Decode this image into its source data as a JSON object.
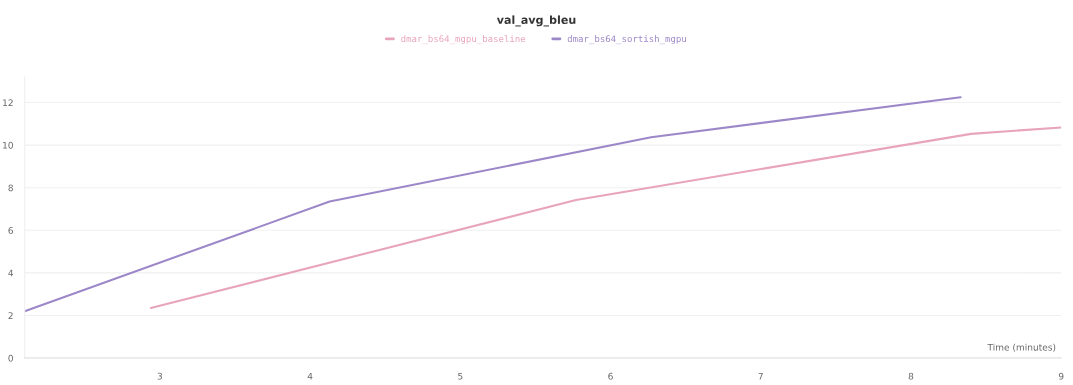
{
  "chart_data": {
    "type": "line",
    "title": "val_avg_bleu",
    "xlabel": "Time (minutes)",
    "xlim": [
      2.1,
      9
    ],
    "xticks": [
      3,
      4,
      5,
      6,
      7,
      8,
      9
    ],
    "ylim": [
      0,
      13.2
    ],
    "yticks": [
      0,
      2,
      4,
      6,
      8,
      10,
      12
    ],
    "grid": "y",
    "legend": "top",
    "series": [
      {
        "name": "dmar_bs64_mgpu_baseline",
        "color": "#e8a5ba",
        "x": [
          2.94,
          5.77,
          8.4,
          9.0
        ],
        "values": [
          2.35,
          7.42,
          10.53,
          10.83
        ]
      },
      {
        "name": "dmar_bs64_sortish_mgpu",
        "color": "#9c88c9",
        "x": [
          2.1,
          4.13,
          6.27,
          8.33
        ],
        "values": [
          2.2,
          7.35,
          10.37,
          12.25
        ]
      }
    ]
  }
}
